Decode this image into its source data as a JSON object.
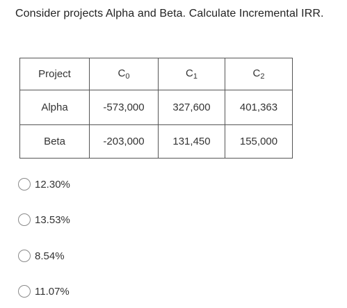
{
  "question": "Consider projects Alpha and Beta. Calculate Incremental IRR.",
  "table": {
    "headers": [
      {
        "main": "Project",
        "sub": ""
      },
      {
        "main": "C",
        "sub": "0"
      },
      {
        "main": "C",
        "sub": "1"
      },
      {
        "main": "C",
        "sub": "2"
      }
    ],
    "rows": [
      [
        "Alpha",
        "-573,000",
        "327,600",
        "401,363"
      ],
      [
        "Beta",
        "-203,000",
        "131,450",
        "155,000"
      ]
    ]
  },
  "options": [
    "12.30%",
    "13.53%",
    "8.54%",
    "11.07%"
  ]
}
